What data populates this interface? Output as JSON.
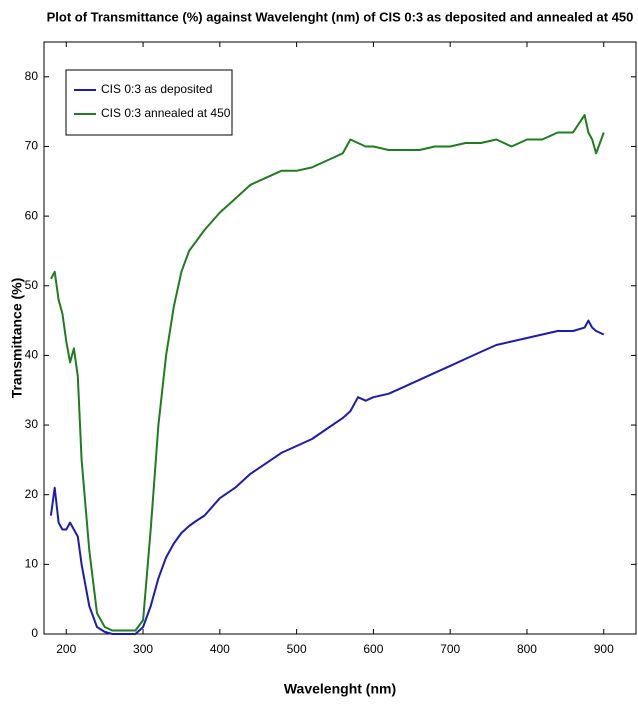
{
  "chart_data": {
    "type": "line",
    "title": "Plot of Transmittance (%) against Wavelenght (nm) of CIS 0:3 as deposited and annealed at 450",
    "x_label": "Wavelenght (nm)",
    "y_label": "Transmittance (%)",
    "x": [
      180,
      185,
      190,
      195,
      200,
      205,
      210,
      215,
      220,
      230,
      240,
      250,
      260,
      270,
      280,
      290,
      300,
      310,
      320,
      330,
      340,
      350,
      360,
      370,
      380,
      400,
      420,
      440,
      460,
      480,
      500,
      520,
      540,
      560,
      570,
      580,
      590,
      600,
      620,
      640,
      660,
      680,
      700,
      720,
      740,
      760,
      780,
      800,
      820,
      840,
      860,
      875,
      880,
      885,
      890,
      900
    ],
    "series": [
      {
        "name": "CIS 0:3 as deposited",
        "color": "#1c1cb4",
        "values": [
          17,
          21,
          16,
          15,
          15,
          16,
          15,
          14,
          10,
          4,
          1,
          0.3,
          0,
          0,
          0,
          0,
          1,
          4,
          8,
          11,
          13,
          14.5,
          15.5,
          16.3,
          17,
          19.5,
          21,
          23,
          24.5,
          26,
          27,
          28,
          29.5,
          31,
          32,
          34,
          33.5,
          34,
          34.5,
          35.5,
          36.5,
          37.5,
          38.5,
          39.5,
          40.5,
          41.5,
          42,
          42.5,
          43,
          43.5,
          43.5,
          44,
          45,
          44,
          43.5,
          43
        ]
      },
      {
        "name": "CIS 0:3 annealed at 450",
        "color": "#1e7d1e",
        "values": [
          51,
          52,
          48,
          46,
          42,
          39,
          41,
          37,
          25,
          12,
          3,
          1,
          0.5,
          0.5,
          0.5,
          0.5,
          2,
          15,
          30,
          40,
          47,
          52,
          55,
          56.5,
          58,
          60.5,
          62.5,
          64.5,
          65.5,
          66.5,
          66.5,
          67,
          68,
          69,
          71,
          70.5,
          70,
          70,
          69.5,
          69.5,
          69.5,
          70,
          70,
          70.5,
          70.5,
          71,
          70,
          71,
          71,
          72,
          72,
          74.5,
          72,
          71,
          69,
          72
        ]
      }
    ],
    "xlim": [
      171,
      942
    ],
    "ylim": [
      0,
      85
    ],
    "xticks": [
      200,
      300,
      400,
      500,
      600,
      700,
      800,
      900
    ],
    "yticks": [
      0,
      10,
      20,
      30,
      40,
      50,
      60,
      70,
      80
    ],
    "legend": "upper left"
  }
}
